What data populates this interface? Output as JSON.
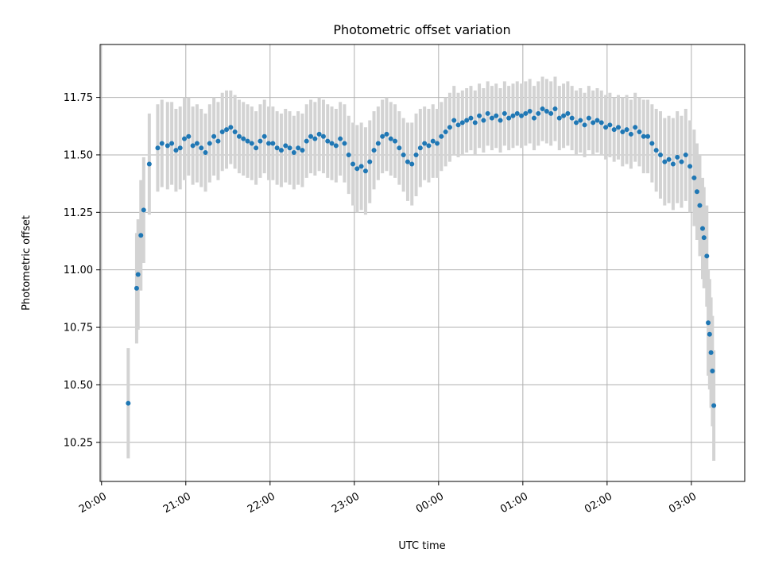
{
  "chart_data": {
    "type": "scatter",
    "title": "Photometric offset variation",
    "xlabel": "UTC time",
    "ylabel": "Photometric offset",
    "x_unit": "UTC time (night starting at 20:00, times past midnight continue on the next day)",
    "xlim": [
      "19:59",
      "03:38"
    ],
    "ylim": [
      10.08,
      11.98
    ],
    "x_tick_labels": [
      "20:00",
      "21:00",
      "22:00",
      "23:00",
      "00:00",
      "01:00",
      "02:00",
      "03:00"
    ],
    "y_tick_labels": [
      "10.25",
      "10.50",
      "10.75",
      "11.00",
      "11.25",
      "11.50",
      "11.75"
    ],
    "y_ticks": [
      10.25,
      10.5,
      10.75,
      11.0,
      11.25,
      11.5,
      11.75
    ],
    "grid": true,
    "legend": "none",
    "colors": {
      "points": "#1f77b4",
      "error_bars": "#d3d3d3",
      "grid": "#b0b0b0"
    },
    "series": [
      {
        "x": [
          "20:19",
          "20:25",
          "20:26",
          "20:28",
          "20:30",
          "20:34",
          "20:40",
          "20:43",
          "20:47",
          "20:50",
          "20:53",
          "20:56",
          "20:59",
          "21:02",
          "21:05",
          "21:08",
          "21:11",
          "21:14",
          "21:17",
          "21:20",
          "21:23",
          "21:26",
          "21:29",
          "21:32",
          "21:35",
          "21:38",
          "21:41",
          "21:44",
          "21:47",
          "21:50",
          "21:53",
          "21:56",
          "21:59",
          "22:02",
          "22:05",
          "22:08",
          "22:11",
          "22:14",
          "22:17",
          "22:20",
          "22:23",
          "22:26",
          "22:29",
          "22:32",
          "22:35",
          "22:38",
          "22:41",
          "22:44",
          "22:47",
          "22:50",
          "22:53",
          "22:56",
          "22:59",
          "23:02",
          "23:05",
          "23:08",
          "23:11",
          "23:14",
          "23:17",
          "23:20",
          "23:23",
          "23:26",
          "23:29",
          "23:32",
          "23:35",
          "23:38",
          "23:41",
          "23:44",
          "23:47",
          "23:50",
          "23:53",
          "23:56",
          "23:59",
          "00:02",
          "00:05",
          "00:08",
          "00:11",
          "00:14",
          "00:17",
          "00:20",
          "00:23",
          "00:26",
          "00:29",
          "00:32",
          "00:35",
          "00:38",
          "00:41",
          "00:44",
          "00:47",
          "00:50",
          "00:53",
          "00:56",
          "00:59",
          "01:02",
          "01:05",
          "01:08",
          "01:11",
          "01:14",
          "01:17",
          "01:20",
          "01:23",
          "01:26",
          "01:29",
          "01:32",
          "01:35",
          "01:38",
          "01:41",
          "01:44",
          "01:47",
          "01:50",
          "01:53",
          "01:56",
          "01:59",
          "02:02",
          "02:05",
          "02:08",
          "02:11",
          "02:14",
          "02:17",
          "02:20",
          "02:23",
          "02:26",
          "02:29",
          "02:32",
          "02:35",
          "02:38",
          "02:41",
          "02:44",
          "02:47",
          "02:50",
          "02:53",
          "02:56",
          "02:59",
          "03:02",
          "03:04",
          "03:06",
          "03:08",
          "03:09",
          "03:11",
          "03:12",
          "03:13",
          "03:14",
          "03:15",
          "03:16"
        ],
        "y": [
          10.42,
          10.92,
          10.98,
          11.15,
          11.26,
          11.46,
          11.53,
          11.55,
          11.54,
          11.55,
          11.52,
          11.53,
          11.57,
          11.58,
          11.54,
          11.55,
          11.53,
          11.51,
          11.55,
          11.58,
          11.56,
          11.6,
          11.61,
          11.62,
          11.6,
          11.58,
          11.57,
          11.56,
          11.55,
          11.53,
          11.56,
          11.58,
          11.55,
          11.55,
          11.53,
          11.52,
          11.54,
          11.53,
          11.51,
          11.53,
          11.52,
          11.56,
          11.58,
          11.57,
          11.59,
          11.58,
          11.56,
          11.55,
          11.54,
          11.57,
          11.55,
          11.5,
          11.46,
          11.44,
          11.45,
          11.43,
          11.47,
          11.52,
          11.55,
          11.58,
          11.59,
          11.57,
          11.56,
          11.53,
          11.5,
          11.47,
          11.46,
          11.5,
          11.53,
          11.55,
          11.54,
          11.56,
          11.55,
          11.58,
          11.6,
          11.62,
          11.65,
          11.63,
          11.64,
          11.65,
          11.66,
          11.64,
          11.67,
          11.65,
          11.68,
          11.66,
          11.67,
          11.65,
          11.68,
          11.66,
          11.67,
          11.68,
          11.67,
          11.68,
          11.69,
          11.66,
          11.68,
          11.7,
          11.69,
          11.68,
          11.7,
          11.66,
          11.67,
          11.68,
          11.66,
          11.64,
          11.65,
          11.63,
          11.66,
          11.64,
          11.65,
          11.64,
          11.62,
          11.63,
          11.61,
          11.62,
          11.6,
          11.61,
          11.59,
          11.62,
          11.6,
          11.58,
          11.58,
          11.55,
          11.52,
          11.5,
          11.47,
          11.48,
          11.46,
          11.49,
          11.47,
          11.5,
          11.45,
          11.4,
          11.34,
          11.28,
          11.18,
          11.14,
          11.06,
          10.77,
          10.72,
          10.64,
          10.56,
          10.41
        ],
        "error": [
          0.24,
          0.24,
          0.24,
          0.24,
          0.23,
          0.22,
          0.19,
          0.19,
          0.19,
          0.18,
          0.18,
          0.18,
          0.18,
          0.17,
          0.17,
          0.17,
          0.17,
          0.17,
          0.17,
          0.17,
          0.17,
          0.17,
          0.17,
          0.16,
          0.16,
          0.16,
          0.16,
          0.16,
          0.16,
          0.16,
          0.16,
          0.16,
          0.16,
          0.16,
          0.16,
          0.16,
          0.16,
          0.16,
          0.16,
          0.16,
          0.16,
          0.16,
          0.16,
          0.16,
          0.16,
          0.16,
          0.16,
          0.16,
          0.16,
          0.16,
          0.17,
          0.17,
          0.18,
          0.19,
          0.19,
          0.19,
          0.18,
          0.17,
          0.16,
          0.16,
          0.16,
          0.16,
          0.16,
          0.16,
          0.16,
          0.17,
          0.18,
          0.18,
          0.17,
          0.16,
          0.16,
          0.16,
          0.15,
          0.15,
          0.15,
          0.15,
          0.15,
          0.14,
          0.14,
          0.14,
          0.14,
          0.14,
          0.14,
          0.14,
          0.14,
          0.14,
          0.14,
          0.14,
          0.14,
          0.14,
          0.14,
          0.14,
          0.14,
          0.14,
          0.14,
          0.14,
          0.14,
          0.14,
          0.14,
          0.14,
          0.14,
          0.14,
          0.14,
          0.14,
          0.14,
          0.14,
          0.14,
          0.14,
          0.14,
          0.14,
          0.14,
          0.14,
          0.14,
          0.14,
          0.14,
          0.14,
          0.15,
          0.15,
          0.15,
          0.15,
          0.15,
          0.16,
          0.16,
          0.17,
          0.18,
          0.19,
          0.19,
          0.19,
          0.2,
          0.2,
          0.2,
          0.2,
          0.2,
          0.21,
          0.21,
          0.22,
          0.22,
          0.22,
          0.22,
          0.23,
          0.24,
          0.24,
          0.24,
          0.24
        ]
      }
    ]
  }
}
